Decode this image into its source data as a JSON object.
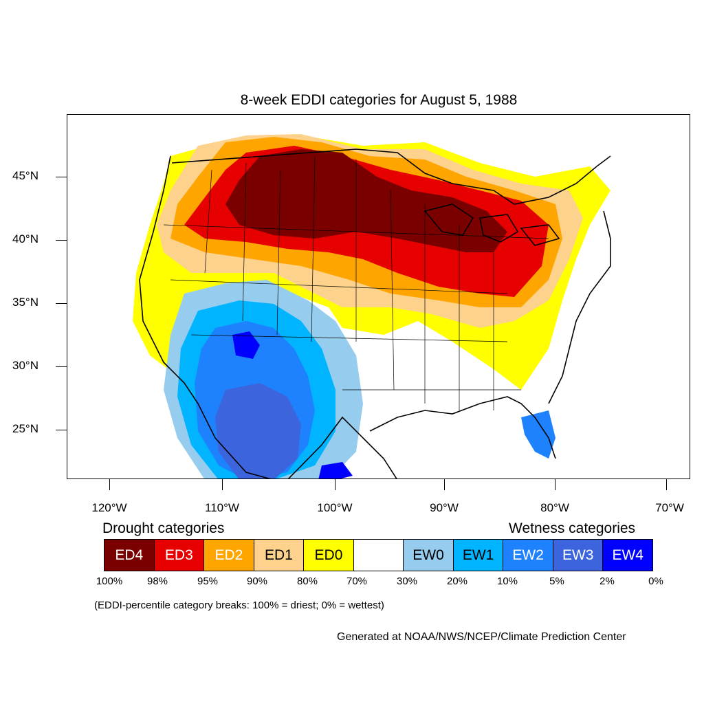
{
  "title": "8-week EDDI categories for August 5, 1988",
  "lat_labels": [
    "45°N",
    "40°N",
    "35°N",
    "30°N",
    "25°N"
  ],
  "lon_labels": [
    "120°W",
    "110°W",
    "100°W",
    "90°W",
    "80°W",
    "70°W"
  ],
  "drought_title": "Drought categories",
  "wetness_title": "Wetness categories",
  "legend": [
    {
      "label": "ED4",
      "color": "#7a0000",
      "text_color": "#ffffff"
    },
    {
      "label": "ED3",
      "color": "#e60000",
      "text_color": "#ffffff"
    },
    {
      "label": "ED2",
      "color": "#ffa500",
      "text_color": "#ffffff"
    },
    {
      "label": "ED1",
      "color": "#fcd28c",
      "text_color": "#000000"
    },
    {
      "label": "ED0",
      "color": "#ffff00",
      "text_color": "#000000"
    },
    {
      "label": "",
      "color": "#ffffff",
      "text_color": "#000000"
    },
    {
      "label": "EW0",
      "color": "#96cdee",
      "text_color": "#000000"
    },
    {
      "label": "EW1",
      "color": "#00b4ff",
      "text_color": "#000000"
    },
    {
      "label": "EW2",
      "color": "#1e82ff",
      "text_color": "#ffffff"
    },
    {
      "label": "EW3",
      "color": "#3c64dc",
      "text_color": "#ffffff"
    },
    {
      "label": "EW4",
      "color": "#0000ff",
      "text_color": "#ffffff"
    }
  ],
  "percent_labels": [
    "100%",
    "98%",
    "95%",
    "90%",
    "80%",
    "70%",
    "30%",
    "20%",
    "10%",
    "5%",
    "2%",
    "0%"
  ],
  "breaks_note": "(EDDI-percentile category breaks: 100% = driest; 0% = wettest)",
  "credit": "Generated at NOAA/NWS/NCEP/Climate Prediction Center"
}
